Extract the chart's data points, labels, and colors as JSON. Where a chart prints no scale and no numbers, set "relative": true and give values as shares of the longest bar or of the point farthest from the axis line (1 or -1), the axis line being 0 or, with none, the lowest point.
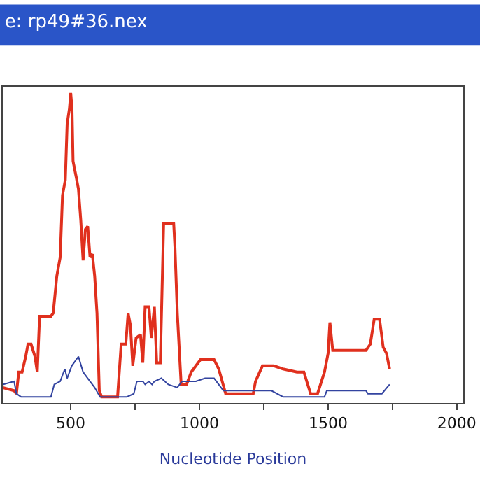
{
  "chart_data": {
    "type": "line",
    "title": "e: rp49#36.nex",
    "xlabel": "Nucleotide Position",
    "relative": true,
    "xlim": [
      236,
      2025
    ],
    "xticks": [
      500,
      {
        "value": 750,
        "label": null
      },
      1000,
      {
        "value": 1250,
        "label": null
      },
      1500,
      {
        "value": 1750,
        "label": null
      },
      2000
    ],
    "series": [
      {
        "color": "#e0301e",
        "x": [
          236,
          280,
          289,
          298,
          311,
          325,
          334,
          346,
          361,
          370,
          379,
          423,
          432,
          446,
          459,
          468,
          479,
          486,
          495,
          500,
          505,
          509,
          521,
          530,
          539,
          548,
          557,
          566,
          575,
          584,
          593,
          602,
          611,
          620,
          682,
          696,
          714,
          723,
          732,
          741,
          754,
          771,
          780,
          789,
          804,
          813,
          825,
          834,
          848,
          861,
          900,
          905,
          914,
          929,
          950,
          968,
          1004,
          1057,
          1075,
          1102,
          1111,
          1209,
          1218,
          1245,
          1289,
          1325,
          1379,
          1406,
          1432,
          1459,
          1486,
          1500,
          1507,
          1518,
          1647,
          1664,
          1679,
          1700,
          1714,
          1727,
          1739
        ],
        "values": [
          0.05,
          0.04,
          0.03,
          0.1,
          0.1,
          0.15,
          0.19,
          0.19,
          0.15,
          0.1,
          0.28,
          0.28,
          0.29,
          0.41,
          0.47,
          0.67,
          0.72,
          0.9,
          0.95,
          1.0,
          0.95,
          0.78,
          0.73,
          0.69,
          0.59,
          0.46,
          0.56,
          0.57,
          0.47,
          0.48,
          0.41,
          0.29,
          0.04,
          0.02,
          0.02,
          0.19,
          0.19,
          0.29,
          0.25,
          0.12,
          0.21,
          0.22,
          0.13,
          0.31,
          0.31,
          0.21,
          0.31,
          0.13,
          0.13,
          0.58,
          0.58,
          0.5,
          0.29,
          0.06,
          0.06,
          0.1,
          0.14,
          0.14,
          0.11,
          0.03,
          0.03,
          0.03,
          0.07,
          0.12,
          0.12,
          0.11,
          0.1,
          0.1,
          0.03,
          0.03,
          0.1,
          0.16,
          0.26,
          0.17,
          0.17,
          0.19,
          0.27,
          0.27,
          0.18,
          0.16,
          0.11
        ]
      },
      {
        "color": "#3344a0",
        "x": [
          236,
          280,
          289,
          307,
          423,
          436,
          459,
          477,
          486,
          504,
          530,
          548,
          566,
          593,
          614,
          718,
          745,
          757,
          780,
          789,
          804,
          816,
          825,
          852,
          879,
          914,
          932,
          986,
          1022,
          1057,
          1093,
          1111,
          1280,
          1325,
          1486,
          1495,
          1647,
          1655,
          1709,
          1739
        ],
        "values": [
          0.06,
          0.07,
          0.03,
          0.02,
          0.02,
          0.06,
          0.07,
          0.11,
          0.08,
          0.12,
          0.15,
          0.1,
          0.08,
          0.05,
          0.02,
          0.02,
          0.03,
          0.07,
          0.07,
          0.06,
          0.07,
          0.06,
          0.07,
          0.08,
          0.06,
          0.05,
          0.07,
          0.07,
          0.08,
          0.08,
          0.04,
          0.04,
          0.04,
          0.02,
          0.02,
          0.04,
          0.04,
          0.03,
          0.03,
          0.06
        ]
      }
    ]
  }
}
